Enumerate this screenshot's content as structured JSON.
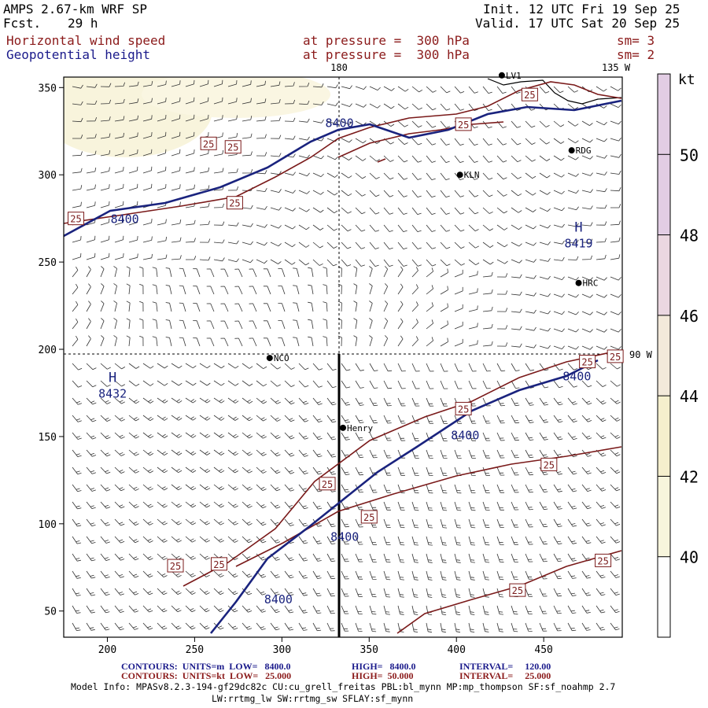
{
  "header": {
    "model": "AMPS 2.67-km WRF SP",
    "fcst_label": "Fcst.",
    "fcst_hours": "29 h",
    "init": "Init. 12 UTC Fri 19 Sep 25",
    "valid": "Valid. 17 UTC Sat 20 Sep 25",
    "field1": "Horizontal wind speed",
    "field1_pressure": "at pressure =  300 hPa",
    "field1_sm": "sm= 3",
    "field2": "Geopotential height",
    "field2_pressure": "at pressure =  300 hPa",
    "field2_sm": "sm= 2"
  },
  "map": {
    "top_labels": [
      "180",
      "135 W"
    ],
    "right_label": "90 W",
    "x_ticks": [
      "200",
      "250",
      "300",
      "350",
      "400",
      "450"
    ],
    "y_ticks": [
      "350",
      "300",
      "250",
      "200",
      "150",
      "100",
      "50"
    ],
    "stations": [
      {
        "name": "LV1",
        "x": 426,
        "y": 357
      },
      {
        "name": "RDG",
        "x": 466,
        "y": 314
      },
      {
        "name": "KLN",
        "x": 402,
        "y": 300
      },
      {
        "name": "HRC",
        "x": 470,
        "y": 238
      },
      {
        "name": "NCO",
        "x": 293,
        "y": 195
      },
      {
        "name": "Henry",
        "x": 335,
        "y": 155
      }
    ],
    "highs": [
      {
        "letter": "H",
        "value": "8419",
        "x": 470,
        "y": 262
      },
      {
        "letter": "H",
        "value": "8432",
        "x": 203,
        "y": 176
      }
    ],
    "contour_labels_8400": [
      {
        "text": "8400",
        "x": 210,
        "y": 275
      },
      {
        "text": "8400",
        "x": 333,
        "y": 330
      },
      {
        "text": "8400",
        "x": 469,
        "y": 185
      },
      {
        "text": "8400",
        "x": 405,
        "y": 151
      },
      {
        "text": "8400",
        "x": 336,
        "y": 93
      },
      {
        "text": "8400",
        "x": 298,
        "y": 57
      }
    ],
    "contour_labels_25": [
      {
        "text": "25",
        "x": 182,
        "y": 275
      },
      {
        "text": "25",
        "x": 273,
        "y": 284
      },
      {
        "text": "25",
        "x": 258,
        "y": 318
      },
      {
        "text": "25",
        "x": 272,
        "y": 316
      },
      {
        "text": "25",
        "x": 404,
        "y": 329
      },
      {
        "text": "25",
        "x": 442,
        "y": 346
      },
      {
        "text": "25",
        "x": 475,
        "y": 193
      },
      {
        "text": "25",
        "x": 491,
        "y": 196
      },
      {
        "text": "25",
        "x": 404,
        "y": 166
      },
      {
        "text": "25",
        "x": 326,
        "y": 123
      },
      {
        "text": "25",
        "x": 350,
        "y": 104
      },
      {
        "text": "25",
        "x": 453,
        "y": 134
      },
      {
        "text": "25",
        "x": 239,
        "y": 76
      },
      {
        "text": "25",
        "x": 264,
        "y": 77
      },
      {
        "text": "25",
        "x": 484,
        "y": 79
      },
      {
        "text": "25",
        "x": 435,
        "y": 62
      }
    ]
  },
  "colorbar": {
    "unit": "kt",
    "levels": [
      "50",
      "48",
      "46",
      "44",
      "42",
      "40"
    ],
    "colors": [
      "#e2cde4",
      "#ebd7e1",
      "#f3e9da",
      "#f5efcd",
      "#f7f5dc",
      "#fefefe"
    ]
  },
  "footer": {
    "line1_label": "CONTOURS:  UNITS=m  LOW=   8400.0",
    "line1_high": "HIGH=   8400.0",
    "line1_int": "INTERVAL=     120.00",
    "line2_label": "CONTOURS:  UNITS=kt  LOW=   25.000",
    "line2_high": "HIGH=  50.000",
    "line2_int": "INTERVAL=     25.000",
    "model_info": "Model Info: MPASv8.2.3-194-gf29dc82c CU:cu_grell_freitas PBL:bl_mynn MP:mp_thompson SF:sf_noahmp 2.7",
    "model_info2": "LW:rrtmg_lw SW:rrtmg_sw SFLAY:sf_mynn"
  }
}
